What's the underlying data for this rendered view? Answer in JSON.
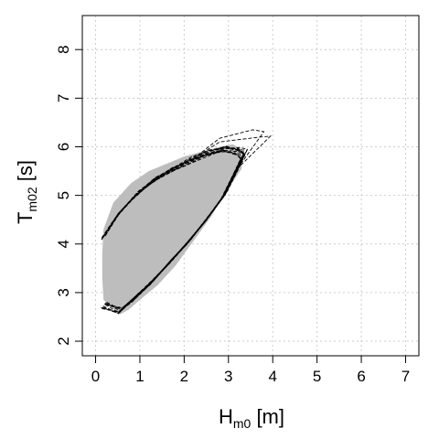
{
  "chart_data": {
    "type": "line",
    "xlabel": {
      "main": "H",
      "sub": "m0",
      "unit": " [m]"
    },
    "ylabel": {
      "main": "T",
      "sub": "m02",
      "unit": " [s]"
    },
    "xlim": [
      -0.3,
      7.3
    ],
    "ylim": [
      1.7,
      8.7
    ],
    "xticks": [
      0,
      1,
      2,
      3,
      4,
      5,
      6,
      7
    ],
    "yticks": [
      2,
      3,
      4,
      5,
      6,
      7,
      8
    ],
    "grid": true,
    "colors": {
      "band": "#bdbdbd",
      "curves": "#000000",
      "grid": "#cccccc"
    },
    "envelope": {
      "upper": [
        [
          0.18,
          4.3
        ],
        [
          0.4,
          4.85
        ],
        [
          0.8,
          5.25
        ],
        [
          1.2,
          5.5
        ],
        [
          1.6,
          5.65
        ],
        [
          2.0,
          5.8
        ],
        [
          2.4,
          5.9
        ],
        [
          2.8,
          6.0
        ],
        [
          3.1,
          6.05
        ],
        [
          3.3,
          5.95
        ]
      ],
      "lower": [
        [
          3.3,
          5.55
        ],
        [
          3.0,
          5.15
        ],
        [
          2.6,
          4.55
        ],
        [
          2.2,
          4.05
        ],
        [
          1.8,
          3.55
        ],
        [
          1.4,
          3.15
        ],
        [
          1.0,
          2.85
        ],
        [
          0.75,
          2.65
        ],
        [
          0.55,
          2.55
        ],
        [
          0.35,
          2.7
        ],
        [
          0.18,
          2.85
        ],
        [
          0.15,
          3.3
        ],
        [
          0.15,
          3.8
        ]
      ]
    },
    "upper_branch": [
      [
        0.18,
        4.15
      ],
      [
        0.5,
        4.6
      ],
      [
        0.9,
        5.0
      ],
      [
        1.3,
        5.3
      ],
      [
        1.7,
        5.52
      ],
      [
        2.1,
        5.7
      ],
      [
        2.5,
        5.85
      ],
      [
        2.9,
        5.95
      ],
      [
        3.2,
        5.92
      ]
    ],
    "lower_branch": [
      [
        0.18,
        2.75
      ],
      [
        0.55,
        2.62
      ],
      [
        0.9,
        2.9
      ],
      [
        1.3,
        3.25
      ],
      [
        1.7,
        3.65
      ],
      [
        2.1,
        4.05
      ],
      [
        2.5,
        4.5
      ],
      [
        2.9,
        5.0
      ],
      [
        3.2,
        5.55
      ]
    ],
    "loop_tip": [
      [
        3.2,
        5.92
      ],
      [
        3.35,
        5.85
      ],
      [
        3.2,
        5.55
      ]
    ],
    "curve_count": 12
  }
}
